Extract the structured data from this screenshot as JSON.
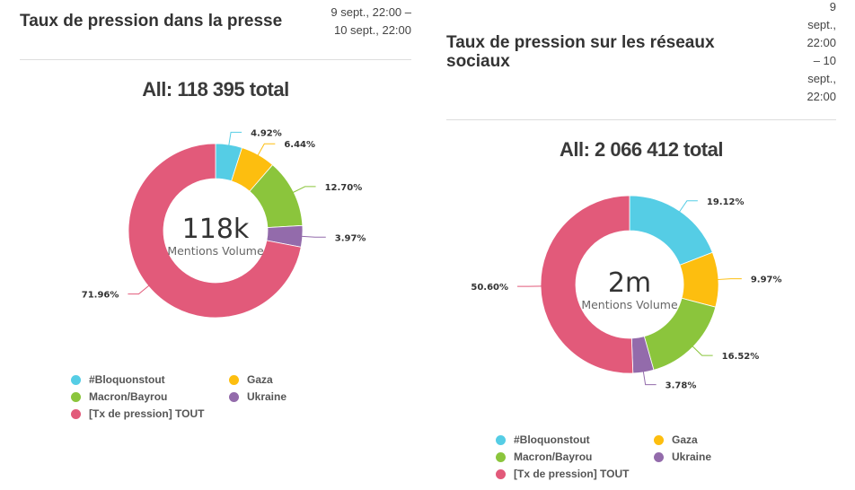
{
  "panels": [
    {
      "title": "Taux de pression dans la presse",
      "date_range": "9 sept., 22:00 – 10 sept., 22:00",
      "total_label": "All: 118 395 total",
      "center_value": "118k",
      "center_caption": "Mentions Volume"
    },
    {
      "title": "Taux de pression sur les réseaux sociaux",
      "date_range": "9 sept., 22:00 – 10 sept., 22:00",
      "total_label": "All: 2 066 412 total",
      "center_value": "2m",
      "center_caption": "Mentions Volume"
    }
  ],
  "legend_items": [
    {
      "name": "#Bloquonstout",
      "color": "#55CDE5"
    },
    {
      "name": "Gaza",
      "color": "#FDBE0F"
    },
    {
      "name": "Macron/Bayrou",
      "color": "#8BC53C"
    },
    {
      "name": "Ukraine",
      "color": "#936BAB"
    },
    {
      "name": "[Tx de pression] TOUT",
      "color": "#E25A7A"
    }
  ],
  "chart_data": [
    {
      "type": "pie",
      "variant": "donut",
      "title": "Taux de pression dans la presse",
      "total": 118395,
      "center_text": "118k",
      "center_caption": "Mentions Volume",
      "categories": [
        "#Bloquonstout",
        "Gaza",
        "Macron/Bayrou",
        "Ukraine",
        "[Tx de pression] TOUT"
      ],
      "values": [
        4.92,
        6.44,
        12.7,
        3.97,
        71.96
      ],
      "labels": [
        "4.92%",
        "6.44%",
        "12.70%",
        "3.97%",
        "71.96%"
      ],
      "colors": [
        "#55CDE5",
        "#FDBE0F",
        "#8BC53C",
        "#936BAB",
        "#E25A7A"
      ],
      "legend_position": "bottom"
    },
    {
      "type": "pie",
      "variant": "donut",
      "title": "Taux de pression sur les réseaux sociaux",
      "total": 2066412,
      "center_text": "2m",
      "center_caption": "Mentions Volume",
      "categories": [
        "#Bloquonstout",
        "Gaza",
        "Macron/Bayrou",
        "Ukraine",
        "[Tx de pression] TOUT"
      ],
      "values": [
        19.12,
        9.97,
        16.52,
        3.78,
        50.6
      ],
      "labels": [
        "19.12%",
        "9.97%",
        "16.52%",
        "3.78%",
        "50.60%"
      ],
      "colors": [
        "#55CDE5",
        "#FDBE0F",
        "#8BC53C",
        "#936BAB",
        "#E25A7A"
      ],
      "legend_position": "bottom"
    }
  ]
}
